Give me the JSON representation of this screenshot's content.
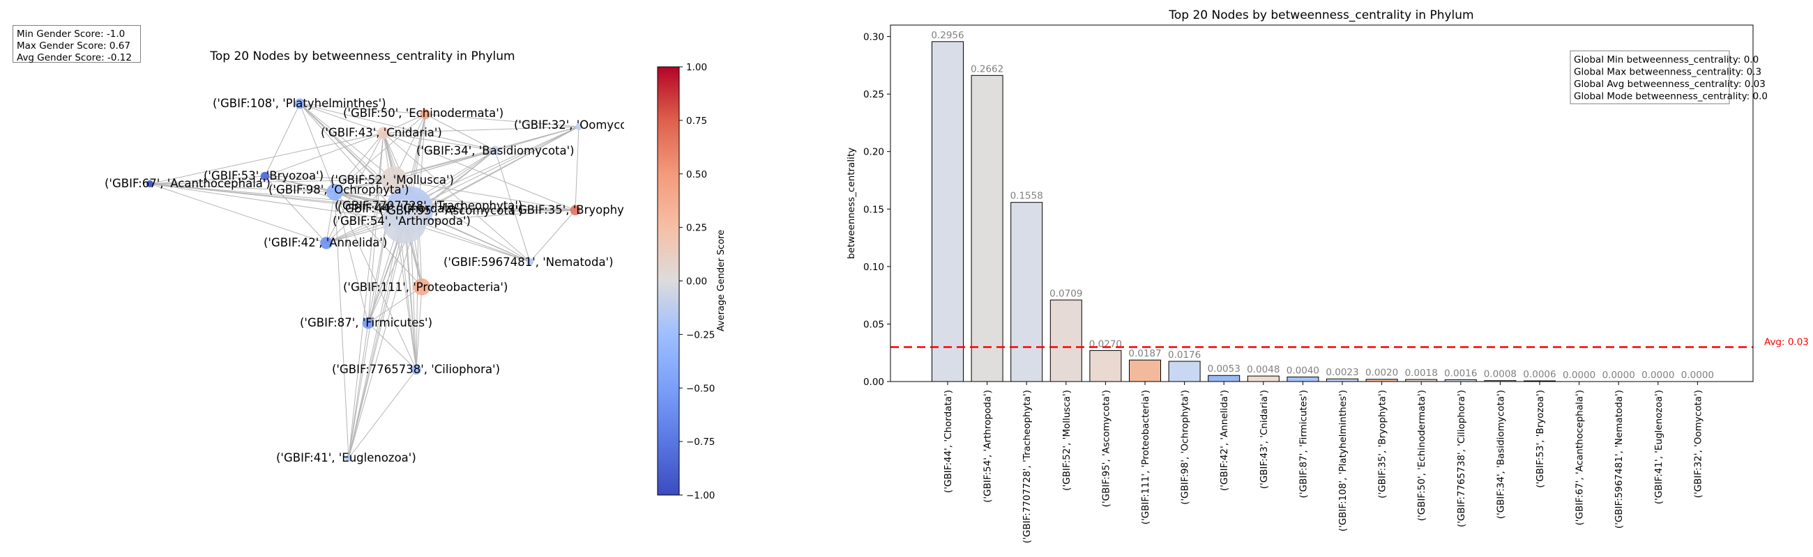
{
  "left_panel": {
    "title": "Top 20 Nodes by betweenness_centrality in Phylum",
    "stats": {
      "min": "Min Gender Score: -1.0",
      "max": "Max Gender Score: 0.67",
      "avg": "Avg Gender Score: -0.12"
    },
    "colorbar": {
      "label": "Average Gender Score",
      "ticks": [
        "1.00",
        "0.75",
        "0.50",
        "0.25",
        "0.00",
        "−0.25",
        "−0.50",
        "−0.75",
        "−1.00"
      ],
      "colormap": "coolwarm",
      "range": [
        -1.0,
        1.0
      ]
    },
    "nodes": [
      {
        "label": "('GBIF:108', 'Platyhelminthes')",
        "score": -0.4,
        "size": 0.0023
      },
      {
        "label": "('GBIF:50', 'Echinodermata')",
        "score": 0.45,
        "size": 0.0018
      },
      {
        "label": "('GBIF:32', 'Oomycota')",
        "score": -0.1,
        "size": 0.0
      },
      {
        "label": "('GBIF:43', 'Cnidaria')",
        "score": 0.15,
        "size": 0.0048
      },
      {
        "label": "('GBIF:34', 'Basidiomycota')",
        "score": -0.1,
        "size": 0.0008
      },
      {
        "label": "('GBIF:67', 'Acanthocephala')",
        "score": -1.0,
        "size": 0.0
      },
      {
        "label": "('GBIF:53', 'Bryozoa')",
        "score": -0.85,
        "size": 0.0006
      },
      {
        "label": "('GBIF:98', 'Ochrophyta')",
        "score": -0.35,
        "size": 0.0176
      },
      {
        "label": "('GBIF:52', 'Mollusca')",
        "score": 0.05,
        "size": 0.0709
      },
      {
        "label": "('GBIF:7707728', 'Tracheophyta')",
        "score": -0.12,
        "size": 0.1558
      },
      {
        "label": "('GBIF:44', 'Chordata')",
        "score": -0.15,
        "size": 0.2956
      },
      {
        "label": "('GBIF:95', 'Ascomycota')",
        "score": 0.1,
        "size": 0.027
      },
      {
        "label": "('GBIF:35', 'Bryophyta')",
        "score": 0.67,
        "size": 0.002
      },
      {
        "label": "('GBIF:54', 'Arthropoda')",
        "score": -0.05,
        "size": 0.2662
      },
      {
        "label": "('GBIF:42', 'Annelida')",
        "score": -0.6,
        "size": 0.0053
      },
      {
        "label": "('GBIF:5967481', 'Nematoda')",
        "score": -0.2,
        "size": 0.0
      },
      {
        "label": "('GBIF:111', 'Proteobacteria')",
        "score": 0.4,
        "size": 0.0187
      },
      {
        "label": "('GBIF:87', 'Firmicutes')",
        "score": -0.55,
        "size": 0.004
      },
      {
        "label": "('GBIF:7765738', 'Ciliophora')",
        "score": -0.3,
        "size": 0.0016
      },
      {
        "label": "('GBIF:41', 'Euglenozoa')",
        "score": -0.2,
        "size": 0.0
      }
    ]
  },
  "chart_data": {
    "type": "bar",
    "title": "Top 20 Nodes by betweenness_centrality in Phylum",
    "xlabel": "",
    "ylabel": "betweenness_centrality",
    "ylim": [
      0,
      0.31
    ],
    "yticks": [
      "0.00",
      "0.05",
      "0.10",
      "0.15",
      "0.20",
      "0.25",
      "0.30"
    ],
    "categories": [
      "('GBIF:44', 'Chordata')",
      "('GBIF:54', 'Arthropoda')",
      "('GBIF:7707728', 'Tracheophyta')",
      "('GBIF:52', 'Mollusca')",
      "('GBIF:95', 'Ascomycota')",
      "('GBIF:111', 'Proteobacteria')",
      "('GBIF:98', 'Ochrophyta')",
      "('GBIF:42', 'Annelida')",
      "('GBIF:43', 'Cnidaria')",
      "('GBIF:87', 'Firmicutes')",
      "('GBIF:108', 'Platyhelminthes')",
      "('GBIF:35', 'Bryophyta')",
      "('GBIF:50', 'Echinodermata')",
      "('GBIF:7765738', 'Ciliophora')",
      "('GBIF:34', 'Basidiomycota')",
      "('GBIF:53', 'Bryozoa')",
      "('GBIF:67', 'Acanthocephala')",
      "('GBIF:5967481', 'Nematoda')",
      "('GBIF:41', 'Euglenozoa')",
      "('GBIF:32', 'Oomycota')"
    ],
    "values": [
      0.2956,
      0.2662,
      0.1558,
      0.0709,
      0.027,
      0.0187,
      0.0176,
      0.0053,
      0.0048,
      0.004,
      0.0023,
      0.002,
      0.0018,
      0.0016,
      0.0008,
      0.0006,
      0.0,
      0.0,
      0.0,
      0.0
    ],
    "value_labels": [
      "0.2956",
      "0.2662",
      "0.1558",
      "0.0709",
      "0.0270",
      "0.0187",
      "0.0176",
      "0.0053",
      "0.0048",
      "0.0040",
      "0.0023",
      "0.0020",
      "0.0018",
      "0.0016",
      "0.0008",
      "0.0006",
      "0.0000",
      "0.0000",
      "0.0000",
      "0.0000"
    ],
    "bar_colors": [
      "#d9dde8",
      "#dfdedd",
      "#d9dde8",
      "#e6dad6",
      "#e9d9d1",
      "#f2b99c",
      "#c8d8f2",
      "#9ab8f2",
      "#f0ddd2",
      "#a7c2f5",
      "#c3d3f0",
      "#f4b69a",
      "#e7d6cc",
      "#d8dde8",
      "#dbdde3",
      "#6f8fe8",
      "#5a75dc",
      "#c9d6ee",
      "#c9d6ee",
      "#d4dbe9"
    ],
    "average": {
      "value": 0.03,
      "label": "Avg: 0.03",
      "color": "#ff0000"
    },
    "global_stats": [
      "Global Min betweenness_centrality: 0.0",
      "Global Max betweenness_centrality: 0.3",
      "Global Avg betweenness_centrality: 0.03",
      "Global Mode betweenness_centrality: 0.0"
    ],
    "grid": false
  }
}
